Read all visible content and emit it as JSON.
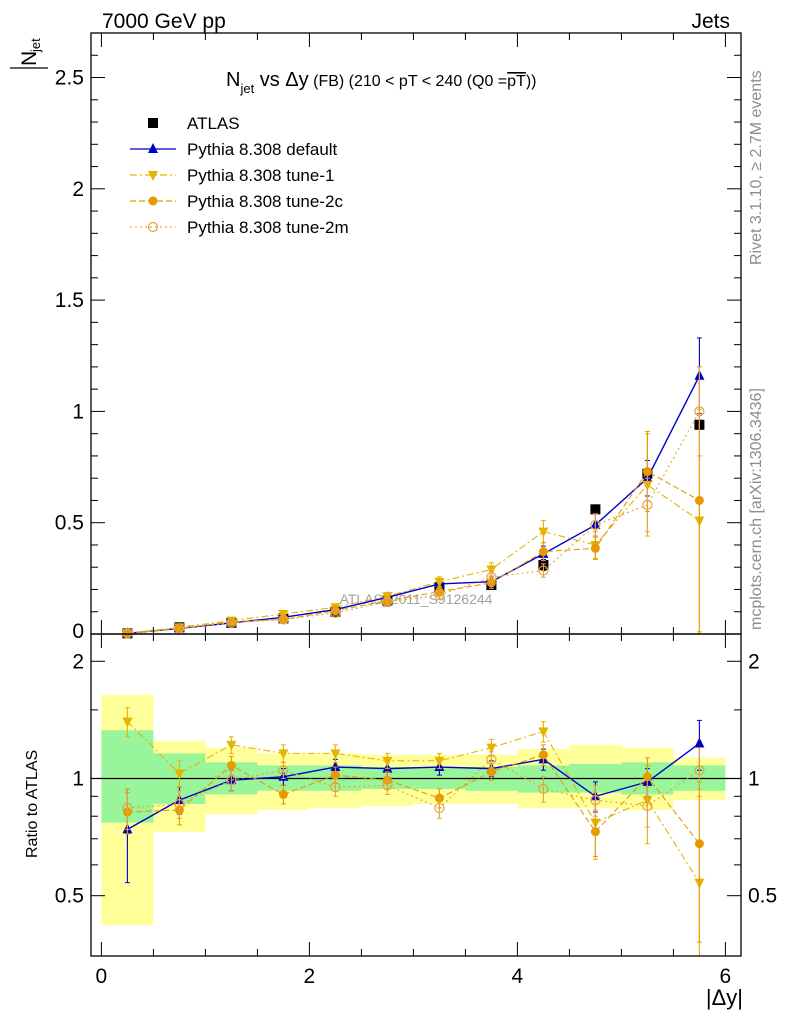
{
  "header": {
    "left": "7000 GeV pp",
    "right": "Jets"
  },
  "side_labels": {
    "rivet": "Rivet 3.1.10, ≥ 2.7M events",
    "mcplots": "mcplots.cern.ch [arXiv:1306.3436]"
  },
  "watermark": "ATLAS_2011_S9126244",
  "title": {
    "main": "N",
    "main_sub": "jet",
    "rest": " vs Δy",
    "fb": " (FB) ",
    "range": "(210 < pT < 240 (Q0 =",
    "pt": "pT",
    "close": "))"
  },
  "colors": {
    "data": "#000000",
    "default": "#0000cc",
    "tune1": "#e6b400",
    "tune2c": "#e69a00",
    "tune2m": "#e6a23c",
    "band_inner": "#99f599",
    "band_outer": "#ffff99"
  },
  "chart_data": [
    {
      "type": "line",
      "ylabel": "N",
      "ylabel_bar_sub": "jet",
      "ylim": [
        0,
        2.7
      ],
      "xlim": [
        -0.1,
        6.15
      ],
      "yticks": [
        "0",
        "0.5",
        "1",
        "1.5",
        "2",
        "2.5"
      ],
      "x": [
        0.25,
        0.75,
        1.25,
        1.75,
        2.25,
        2.75,
        3.25,
        3.75,
        4.25,
        4.75,
        5.25,
        5.75
      ],
      "series": [
        {
          "name": "ATLAS",
          "key": "data",
          "marker": "square",
          "style": "none",
          "values": [
            0.003,
            0.03,
            0.05,
            0.07,
            0.1,
            0.15,
            0.21,
            0.22,
            0.31,
            0.56,
            0.72,
            0.94
          ],
          "errors": [
            0.002,
            0.006,
            0.005,
            0.006,
            0.008,
            0.012,
            0.015,
            0.02,
            0.025,
            0.02,
            0.02,
            0.02
          ]
        },
        {
          "name": "Pythia 8.308 default",
          "key": "default",
          "marker": "triangle-up",
          "style": "solid",
          "values": [
            0.003,
            0.025,
            0.05,
            0.075,
            0.11,
            0.165,
            0.225,
            0.235,
            0.36,
            0.49,
            0.7,
            1.16
          ],
          "errors": [
            0.002,
            0.005,
            0.006,
            0.008,
            0.01,
            0.015,
            0.02,
            0.025,
            0.035,
            0.05,
            0.08,
            0.17
          ]
        },
        {
          "name": "Pythia 8.308 tune-1",
          "key": "tune1",
          "marker": "triangle-down",
          "style": "dashdot",
          "values": [
            0.004,
            0.03,
            0.06,
            0.09,
            0.12,
            0.17,
            0.235,
            0.29,
            0.46,
            0.4,
            0.67,
            0.51
          ],
          "errors": [
            0.002,
            0.006,
            0.008,
            0.01,
            0.012,
            0.016,
            0.022,
            0.03,
            0.05,
            0.06,
            0.23,
            0.5
          ]
        },
        {
          "name": "Pythia 8.308 tune-2c",
          "key": "tune2c",
          "marker": "circle",
          "style": "dashed",
          "values": [
            0.003,
            0.025,
            0.055,
            0.065,
            0.105,
            0.15,
            0.19,
            0.23,
            0.37,
            0.385,
            0.73,
            0.6
          ],
          "errors": [
            0.002,
            0.005,
            0.007,
            0.008,
            0.01,
            0.014,
            0.02,
            0.025,
            0.04,
            0.05,
            0.18,
            0.6
          ]
        },
        {
          "name": "Pythia 8.308 tune-2m",
          "key": "tune2m",
          "marker": "circle-open",
          "style": "dotted",
          "values": [
            0.003,
            0.026,
            0.05,
            0.065,
            0.095,
            0.145,
            0.175,
            0.255,
            0.285,
            0.49,
            0.58,
            1.0
          ],
          "errors": [
            0.002,
            0.005,
            0.006,
            0.008,
            0.01,
            0.014,
            0.018,
            0.025,
            0.03,
            0.05,
            0.12,
            0.2
          ]
        }
      ]
    },
    {
      "type": "line",
      "ylabel": "Ratio to ATLAS",
      "xlabel": "|Δy|",
      "ylim": [
        0.35,
        2.35
      ],
      "xlim": [
        -0.1,
        6.15
      ],
      "yticks": [
        "0.5",
        "1",
        "2"
      ],
      "xticks": [
        "0",
        "2",
        "4",
        "6"
      ],
      "bands": {
        "edges": [
          0,
          0.5,
          1,
          1.5,
          2,
          2.5,
          3,
          3.5,
          4,
          4.5,
          5,
          5.5,
          6
        ],
        "inner_low": [
          0.77,
          0.86,
          0.91,
          0.93,
          0.93,
          0.94,
          0.94,
          0.93,
          0.92,
          0.92,
          0.91,
          0.93
        ],
        "inner_high": [
          1.33,
          1.16,
          1.1,
          1.08,
          1.08,
          1.07,
          1.07,
          1.07,
          1.08,
          1.09,
          1.1,
          1.08
        ],
        "outer_low": [
          0.42,
          0.73,
          0.81,
          0.83,
          0.84,
          0.85,
          0.86,
          0.86,
          0.84,
          0.84,
          0.83,
          0.88
        ],
        "outer_high": [
          1.64,
          1.25,
          1.2,
          1.16,
          1.16,
          1.15,
          1.15,
          1.15,
          1.19,
          1.22,
          1.2,
          1.13
        ]
      },
      "series": [
        {
          "name": "Pythia 8.308 default",
          "key": "default",
          "marker": "triangle-up",
          "style": "solid",
          "values": [
            0.74,
            0.88,
            0.99,
            1.01,
            1.07,
            1.06,
            1.07,
            1.06,
            1.12,
            0.9,
            0.98,
            1.23
          ],
          "errors": [
            0.2,
            0.07,
            0.06,
            0.05,
            0.05,
            0.05,
            0.05,
            0.05,
            0.07,
            0.08,
            0.08,
            0.18
          ]
        },
        {
          "name": "Pythia 8.308 tune-1",
          "key": "tune1",
          "marker": "triangle-down",
          "style": "dashdot",
          "values": [
            1.4,
            1.03,
            1.22,
            1.16,
            1.16,
            1.11,
            1.11,
            1.2,
            1.32,
            0.77,
            0.88,
            0.54
          ],
          "errors": [
            0.12,
            0.08,
            0.06,
            0.06,
            0.06,
            0.05,
            0.05,
            0.06,
            0.08,
            0.15,
            0.2,
            0.4
          ]
        },
        {
          "name": "Pythia 8.308 tune-2c",
          "key": "tune2c",
          "marker": "circle",
          "style": "dashed",
          "values": [
            0.82,
            0.83,
            1.08,
            0.91,
            1.02,
            0.99,
            0.89,
            1.04,
            1.15,
            0.73,
            1.01,
            0.68
          ],
          "errors": [
            0.1,
            0.07,
            0.06,
            0.05,
            0.05,
            0.05,
            0.05,
            0.05,
            0.07,
            0.1,
            0.12,
            0.3
          ]
        },
        {
          "name": "Pythia 8.308 tune-2m",
          "key": "tune2m",
          "marker": "circle-open",
          "style": "dotted",
          "values": [
            0.84,
            0.86,
            0.99,
            1.05,
            0.95,
            0.96,
            0.84,
            1.12,
            0.94,
            0.88,
            0.85,
            1.05
          ],
          "errors": [
            0.1,
            0.07,
            0.06,
            0.05,
            0.05,
            0.05,
            0.05,
            0.05,
            0.07,
            0.08,
            0.1,
            0.15
          ]
        }
      ]
    }
  ]
}
